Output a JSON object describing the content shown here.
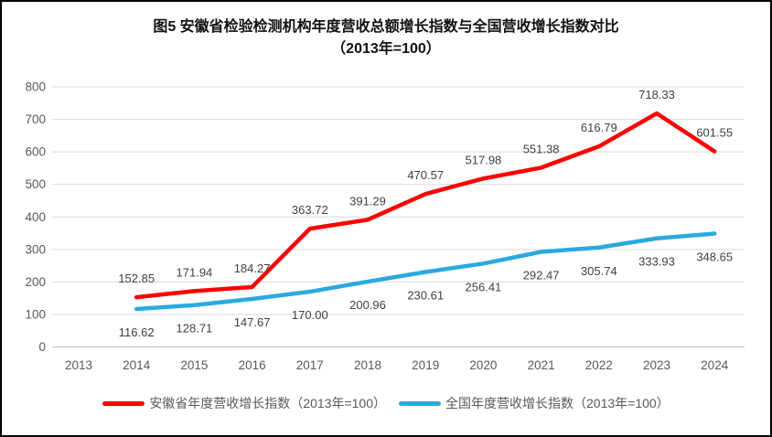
{
  "figure": {
    "title_line1": "图5  安徽省检验检测机构年度营收总额增长指数与全国营收增长指数对比",
    "title_line2": "（2013年=100）"
  },
  "chart_data": {
    "type": "line",
    "title": "图5 安徽省检验检测机构年度营收总额增长指数与全国营收增长指数对比（2013年=100）",
    "categories": [
      "2013",
      "2014",
      "2015",
      "2016",
      "2017",
      "2018",
      "2019",
      "2020",
      "2021",
      "2022",
      "2023",
      "2024"
    ],
    "series": [
      {
        "id": "anhui",
        "name": "安徽省年度营收增长指数（2013年=100）",
        "color": "#FF0000",
        "label_position": "above",
        "values": [
          null,
          152.85,
          171.94,
          184.27,
          363.72,
          391.29,
          470.57,
          517.98,
          551.38,
          616.79,
          718.33,
          601.55
        ]
      },
      {
        "id": "national",
        "name": "全国年度营收增长指数（2013年=100）",
        "color": "#29A9DF",
        "label_position": "below",
        "values": [
          null,
          116.62,
          128.71,
          147.67,
          170.0,
          200.96,
          230.61,
          256.41,
          292.47,
          305.74,
          333.93,
          348.65
        ]
      }
    ],
    "y_ticks": [
      0,
      100,
      200,
      300,
      400,
      500,
      600,
      700,
      800
    ],
    "ylim": [
      0,
      800
    ],
    "grid": true,
    "legend_position": "bottom",
    "label_decimals": 2
  }
}
